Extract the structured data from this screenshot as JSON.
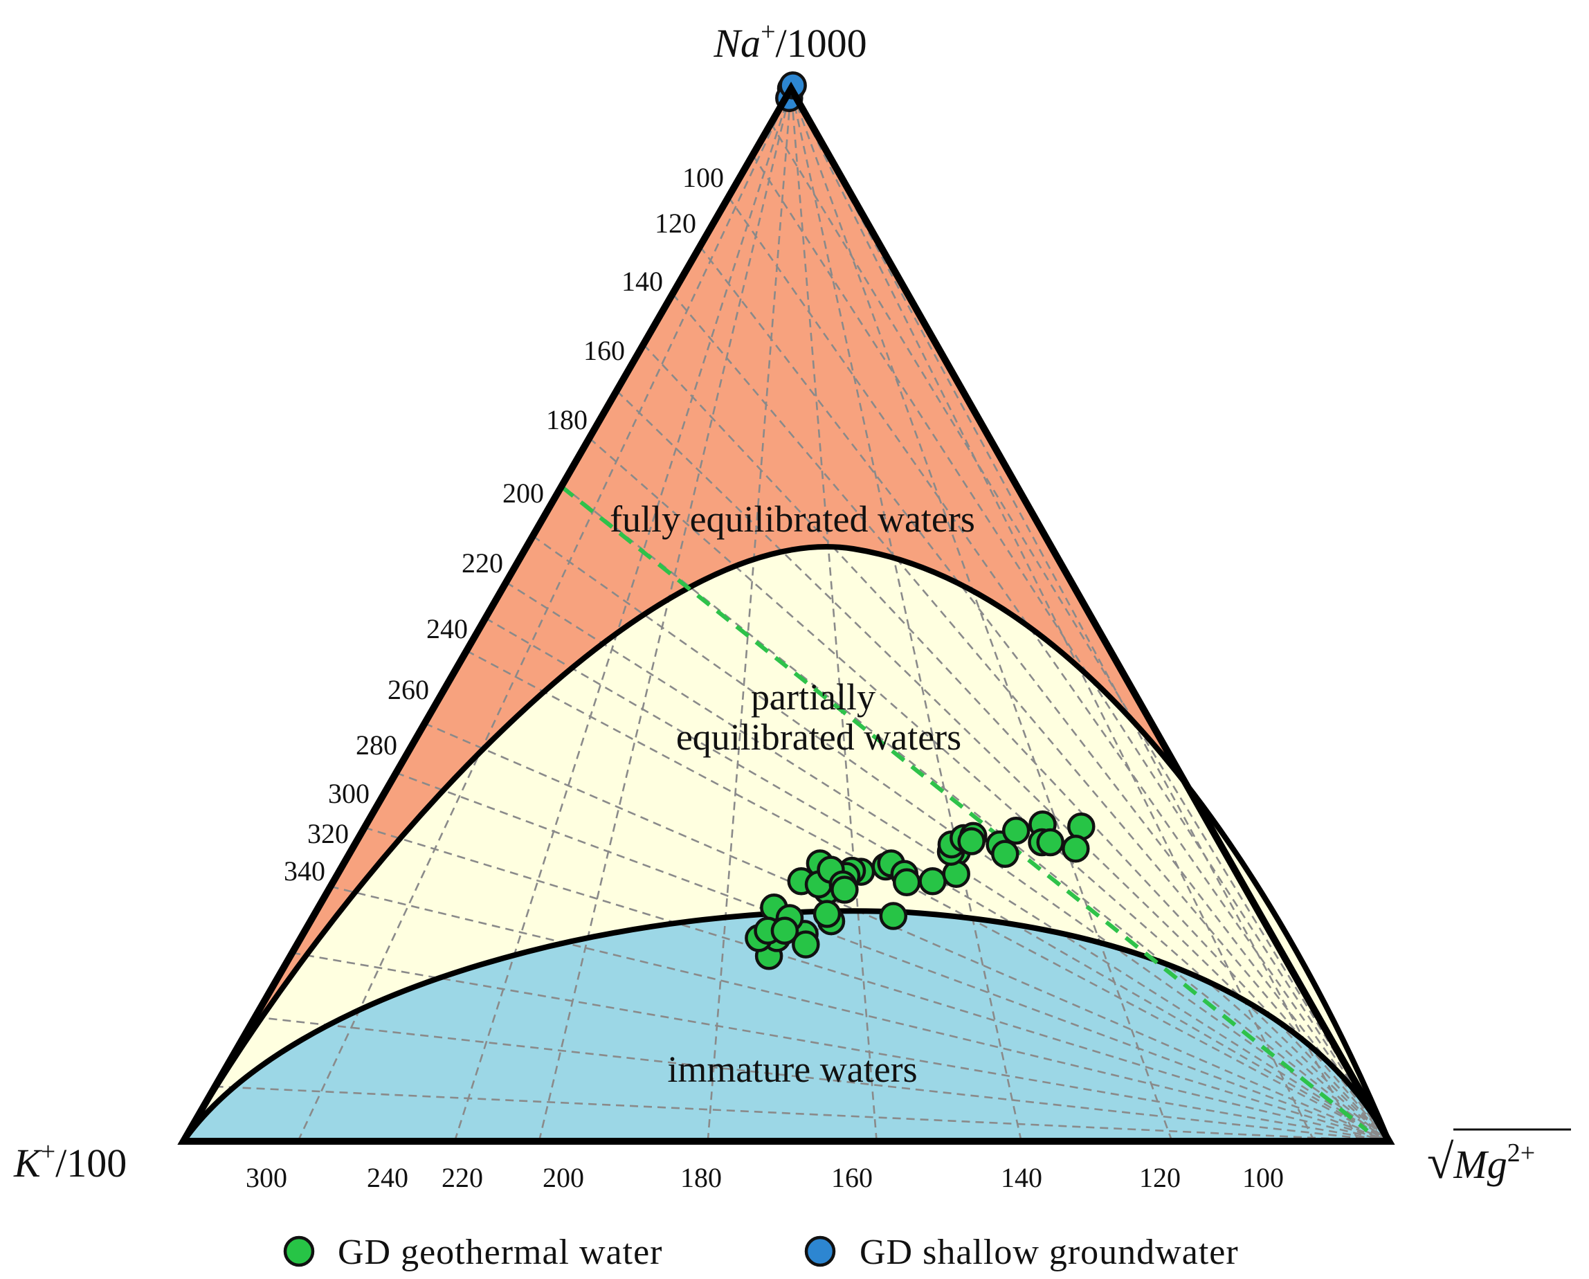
{
  "chart_data": {
    "type": "scatter",
    "diagram": "ternary",
    "vertices": {
      "top": {
        "base": "Na",
        "sup": "+",
        "suffix": "/1000"
      },
      "left": {
        "base": "K",
        "sup": "+",
        "suffix": "/100"
      },
      "right": {
        "radical": "√",
        "base": "Mg",
        "sup": "2+"
      }
    },
    "regions": [
      {
        "label": "fully equilibrated waters",
        "color": "#f7a27e"
      },
      {
        "label_lines": [
          "partially",
          "equilibrated waters"
        ],
        "color": "#ffffe0"
      },
      {
        "label": "immature waters",
        "color": "#9cd7e6"
      }
    ],
    "left_edge_ticks": [
      "100",
      "120",
      "140",
      "160",
      "180",
      "200",
      "220",
      "240",
      "260",
      "280",
      "300",
      "320",
      "340"
    ],
    "bottom_edge_ticks": [
      "300",
      "240",
      "220",
      "200",
      "180",
      "160",
      "140",
      "120",
      "100"
    ],
    "reference_line": {
      "color": "#2ec24a",
      "style": "dashed"
    },
    "series": [
      {
        "name": "GD geothermal water",
        "color": "#27c446",
        "points": [
          [
            0.433,
            0.256
          ],
          [
            0.425,
            0.257
          ],
          [
            0.423,
            0.252
          ],
          [
            0.414,
            0.238
          ],
          [
            0.416,
            0.197
          ],
          [
            0.422,
            0.187
          ],
          [
            0.397,
            0.176
          ],
          [
            0.395,
            0.193
          ],
          [
            0.432,
            0.209
          ],
          [
            0.395,
            0.264
          ],
          [
            0.388,
            0.247
          ],
          [
            0.378,
            0.222
          ],
          [
            0.396,
            0.212
          ],
          [
            0.38,
            0.193
          ],
          [
            0.384,
            0.2
          ],
          [
            0.398,
            0.2
          ],
          [
            0.425,
            0.216
          ],
          [
            0.404,
            0.244
          ],
          [
            0.407,
            0.258
          ],
          [
            0.424,
            0.244
          ],
          [
            0.428,
            0.239
          ],
          [
            0.451,
            0.261
          ],
          [
            0.454,
            0.264
          ],
          [
            0.47,
            0.254
          ],
          [
            0.476,
            0.246
          ],
          [
            0.497,
            0.247
          ],
          [
            0.503,
            0.275
          ],
          [
            0.513,
            0.254
          ],
          [
            0.498,
            0.275
          ],
          [
            0.495,
            0.282
          ],
          [
            0.502,
            0.288
          ],
          [
            0.509,
            0.29
          ],
          [
            0.51,
            0.285
          ],
          [
            0.535,
            0.282
          ],
          [
            0.542,
            0.295
          ],
          [
            0.544,
            0.273
          ],
          [
            0.561,
            0.301
          ],
          [
            0.569,
            0.284
          ],
          [
            0.576,
            0.284
          ],
          [
            0.594,
            0.299
          ],
          [
            0.481,
            0.214
          ],
          [
            0.6,
            0.278
          ]
        ]
      },
      {
        "name": "GD shallow groundwater",
        "color": "#2d86d1",
        "points": [
          [
            0.0,
            1.0
          ],
          [
            0.003,
            0.991
          ],
          [
            0.0,
            1.003
          ]
        ]
      }
    ]
  }
}
